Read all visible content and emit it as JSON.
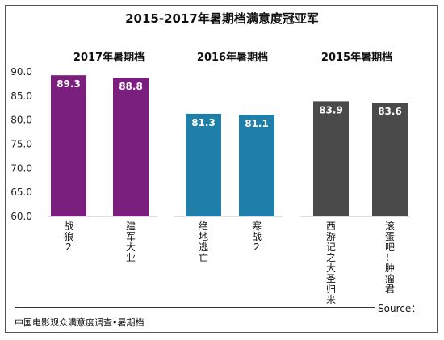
{
  "chart_data": {
    "type": "bar",
    "title": "2015-2017年暑期档满意度冠亚军",
    "ylim": [
      60,
      90
    ],
    "yticks": [
      "90.0",
      "85.0",
      "80.0",
      "75.0",
      "70.0",
      "65.0",
      "60.0"
    ],
    "groups": [
      {
        "label": "2017年暑期档",
        "color": "#7b1f7e",
        "categories": [
          "战狼2",
          "建军大业"
        ],
        "values": [
          89.3,
          88.8
        ],
        "value_labels": [
          "89.3",
          "88.8"
        ]
      },
      {
        "label": "2016年暑期档",
        "color": "#1f7fa8",
        "categories": [
          "绝地逃亡",
          "寒战2"
        ],
        "values": [
          81.3,
          81.1
        ],
        "value_labels": [
          "81.3",
          "81.1"
        ]
      },
      {
        "label": "2015年暑期档",
        "color": "#4a4a4a",
        "categories": [
          "西游记之大圣归来",
          "滚蛋吧！肿瘤君"
        ],
        "values": [
          83.9,
          83.6
        ],
        "value_labels": [
          "83.9",
          "83.6"
        ]
      }
    ]
  },
  "source": {
    "label": "Source：",
    "text": "中国电影观众满意度调查•暑期档"
  }
}
